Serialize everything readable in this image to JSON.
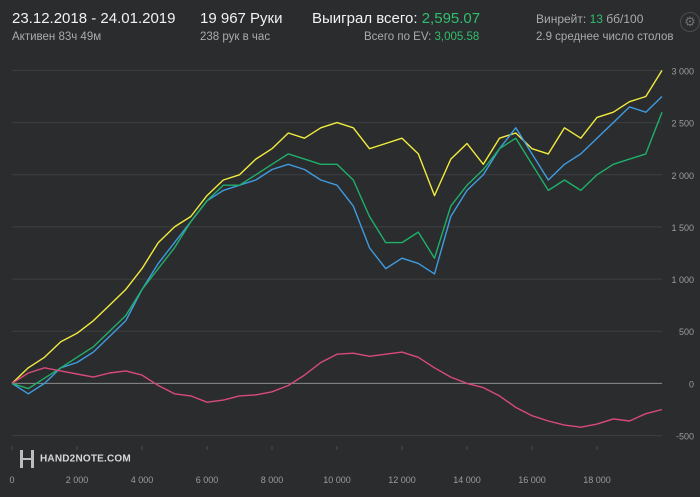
{
  "header": {
    "date_range": "23.12.2018 - 24.01.2019",
    "active": "Активен 83ч 49м",
    "hands": "19 967 Руки",
    "hands_per_hour": "238 рук в час",
    "won_label": "Выиграл всего:",
    "won_value": "2,595.07",
    "ev_label": "Всего по EV:",
    "ev_value": "3,005.58",
    "winrate_label": "Винрейт:",
    "winrate_value": "13",
    "winrate_unit": "бб/100",
    "tables": "2.9 среднее число столов"
  },
  "logo_text": "HAND2NOTE.COM",
  "gear_icon": "gear-icon",
  "chart_data": {
    "type": "line",
    "x_range": [
      0,
      20000
    ],
    "y_range": [
      -600,
      3100
    ],
    "x_ticks": [
      "0",
      "2 000",
      "4 000",
      "6 000",
      "8 000",
      "10 000",
      "12 000",
      "14 000",
      "16 000",
      "18 000"
    ],
    "y_ticks": [
      "3 000",
      "2 500",
      "2 000",
      "1 500",
      "1 000",
      "500",
      "0",
      "-500"
    ],
    "grid": true,
    "colors": {
      "yellow": "#f2ec3e",
      "blue": "#3f9be0",
      "green": "#1fb06a",
      "pink": "#d94a7a"
    },
    "series": [
      {
        "color": "yellow",
        "x": [
          0,
          500,
          1000,
          1500,
          2000,
          2500,
          3000,
          3500,
          4000,
          4500,
          5000,
          5500,
          6000,
          6500,
          7000,
          7500,
          8000,
          8500,
          9000,
          9500,
          10000,
          10500,
          11000,
          11500,
          12000,
          12500,
          13000,
          13500,
          14000,
          14500,
          15000,
          15500,
          16000,
          16500,
          17000,
          17500,
          18000,
          18500,
          19000,
          19500,
          20000
        ],
        "y": [
          0,
          150,
          250,
          400,
          480,
          600,
          750,
          900,
          1100,
          1350,
          1500,
          1600,
          1800,
          1950,
          2000,
          2150,
          2250,
          2400,
          2350,
          2450,
          2500,
          2450,
          2250,
          2300,
          2350,
          2200,
          1800,
          2150,
          2300,
          2100,
          2350,
          2400,
          2250,
          2200,
          2450,
          2350,
          2550,
          2600,
          2700,
          2750,
          3000
        ]
      },
      {
        "color": "blue",
        "x": [
          0,
          500,
          1000,
          1500,
          2000,
          2500,
          3000,
          3500,
          4000,
          4500,
          5000,
          5500,
          6000,
          6500,
          7000,
          7500,
          8000,
          8500,
          9000,
          9500,
          10000,
          10500,
          11000,
          11500,
          12000,
          12500,
          13000,
          13500,
          14000,
          14500,
          15000,
          15500,
          16000,
          16500,
          17000,
          17500,
          18000,
          18500,
          19000,
          19500,
          20000
        ],
        "y": [
          0,
          -100,
          0,
          150,
          200,
          300,
          450,
          600,
          900,
          1150,
          1350,
          1550,
          1750,
          1850,
          1900,
          1950,
          2050,
          2100,
          2050,
          1950,
          1900,
          1700,
          1300,
          1100,
          1200,
          1150,
          1050,
          1600,
          1850,
          2000,
          2250,
          2450,
          2200,
          1950,
          2100,
          2200,
          2350,
          2500,
          2650,
          2600,
          2750
        ]
      },
      {
        "color": "green",
        "x": [
          0,
          500,
          1000,
          1500,
          2000,
          2500,
          3000,
          3500,
          4000,
          4500,
          5000,
          5500,
          6000,
          6500,
          7000,
          7500,
          8000,
          8500,
          9000,
          9500,
          10000,
          10500,
          11000,
          11500,
          12000,
          12500,
          13000,
          13500,
          14000,
          14500,
          15000,
          15500,
          16000,
          16500,
          17000,
          17500,
          18000,
          18500,
          19000,
          19500,
          20000
        ],
        "y": [
          0,
          -50,
          50,
          150,
          250,
          350,
          500,
          650,
          900,
          1100,
          1300,
          1550,
          1750,
          1900,
          1900,
          2000,
          2100,
          2200,
          2150,
          2100,
          2100,
          1950,
          1600,
          1350,
          1350,
          1450,
          1200,
          1700,
          1900,
          2050,
          2250,
          2350,
          2100,
          1850,
          1950,
          1850,
          2000,
          2100,
          2150,
          2200,
          2600
        ]
      },
      {
        "color": "pink",
        "x": [
          0,
          500,
          1000,
          1500,
          2000,
          2500,
          3000,
          3500,
          4000,
          4500,
          5000,
          5500,
          6000,
          6500,
          7000,
          7500,
          8000,
          8500,
          9000,
          9500,
          10000,
          10500,
          11000,
          11500,
          12000,
          12500,
          13000,
          13500,
          14000,
          14500,
          15000,
          15500,
          16000,
          16500,
          17000,
          17500,
          18000,
          18500,
          19000,
          19500,
          20000
        ],
        "y": [
          0,
          100,
          150,
          120,
          90,
          60,
          100,
          120,
          80,
          -20,
          -100,
          -120,
          -180,
          -160,
          -120,
          -110,
          -80,
          -20,
          80,
          200,
          280,
          290,
          260,
          280,
          300,
          250,
          150,
          60,
          0,
          -40,
          -120,
          -230,
          -310,
          -360,
          -400,
          -420,
          -390,
          -340,
          -360,
          -290,
          -250
        ]
      }
    ]
  }
}
